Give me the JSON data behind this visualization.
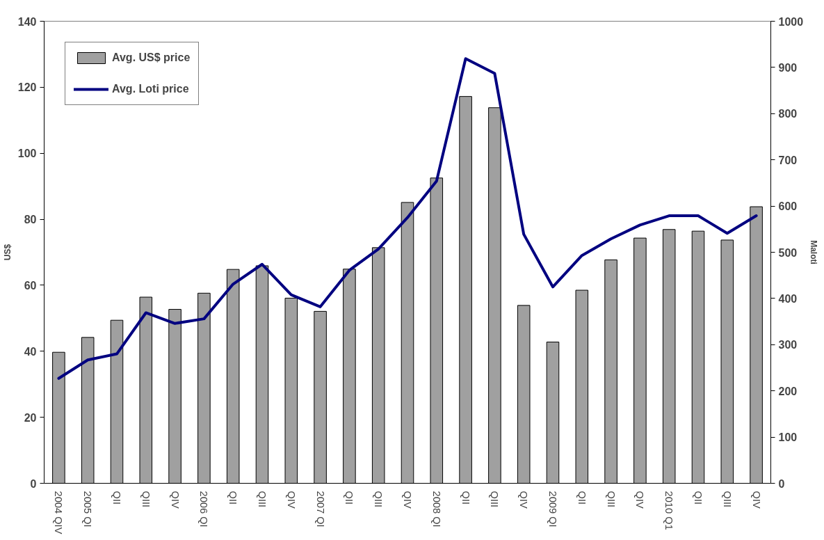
{
  "chart_data": {
    "type": "bar",
    "ylabel": "US$",
    "y2label": "Maloti",
    "categories": [
      "2004 QIV",
      "2005 QI",
      "QII",
      "QIII",
      "QIV",
      "2006 QI",
      "QII",
      "QIII",
      "QIV",
      "2007 QI",
      "QII",
      "QIII",
      "QIV",
      "2008 QI",
      "QII",
      "QIII",
      "QIV",
      "2009 QI",
      "QII",
      "QIII",
      "QIV",
      "2010 Q1",
      "QII",
      "QIII",
      "QIV"
    ],
    "series": [
      {
        "name": "Avg. US$ price",
        "color": "#a0a0a0",
        "values": [
          39.7,
          44.2,
          49.4,
          56.4,
          52.7,
          57.6,
          64.8,
          65.9,
          56.1,
          52.1,
          64.9,
          71.4,
          85.1,
          92.5,
          117.2,
          113.8,
          53.9,
          42.8,
          58.5,
          67.7,
          74.3,
          76.9,
          76.4,
          73.7,
          83.8
        ]
      },
      {
        "name": "Avg. Loti price",
        "type": "line",
        "axis": "y2",
        "color": "#000080",
        "values": [
          227,
          267,
          280,
          369,
          346,
          356,
          431,
          474,
          408,
          382,
          461,
          507,
          575,
          654,
          919,
          887,
          539,
          425,
          493,
          529,
          559,
          579,
          579,
          541,
          579
        ]
      }
    ],
    "ylim": [
      0,
      140
    ],
    "yticks": [
      0,
      20,
      40,
      60,
      80,
      100,
      120,
      140
    ],
    "y2lim": [
      0,
      1000
    ],
    "y2ticks": [
      0,
      100,
      200,
      300,
      400,
      500,
      600,
      700,
      800,
      900,
      1000
    ],
    "legend": "top left",
    "grid": false,
    "line_style": "solid",
    "marker": "none"
  }
}
